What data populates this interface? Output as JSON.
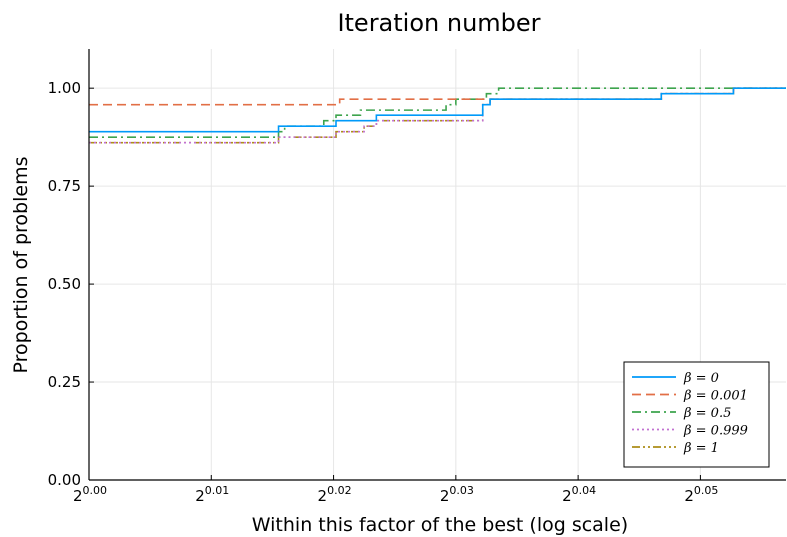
{
  "chart_data": {
    "type": "line",
    "title": "Iteration number",
    "xlabel": "Within this factor of the best (log scale)",
    "ylabel": "Proportion of problems",
    "xscale": "log2",
    "xlim": [
      0,
      0.057
    ],
    "ylim": [
      0,
      1.1
    ],
    "xticks": [
      {
        "base": "2",
        "exp": "0.00",
        "value": 0.0
      },
      {
        "base": "2",
        "exp": "0.01",
        "value": 0.01
      },
      {
        "base": "2",
        "exp": "0.02",
        "value": 0.02
      },
      {
        "base": "2",
        "exp": "0.03",
        "value": 0.03
      },
      {
        "base": "2",
        "exp": "0.04",
        "value": 0.04
      },
      {
        "base": "2",
        "exp": "0.05",
        "value": 0.05
      }
    ],
    "yticks": [
      {
        "label": "0.00",
        "value": 0.0
      },
      {
        "label": "0.25",
        "value": 0.25
      },
      {
        "label": "0.50",
        "value": 0.5
      },
      {
        "label": "0.75",
        "value": 0.75
      },
      {
        "label": "1.00",
        "value": 1.0
      }
    ],
    "grid": true,
    "legend_position": "bottom-right",
    "series": [
      {
        "name": "β = 0",
        "color": "#009af9",
        "dash": "solid",
        "steps": [
          [
            0,
            0.889
          ],
          [
            0.0155,
            0.903
          ],
          [
            0.0202,
            0.917
          ],
          [
            0.0235,
            0.931
          ],
          [
            0.0322,
            0.958
          ],
          [
            0.0328,
            0.972
          ],
          [
            0.0468,
            0.986
          ],
          [
            0.0527,
            1.0
          ],
          [
            0.057,
            1.0
          ]
        ]
      },
      {
        "name": "β = 0.001",
        "color": "#e26f46",
        "dash": "dashed",
        "steps": [
          [
            0,
            0.958
          ],
          [
            0.0205,
            0.972
          ],
          [
            0.0468,
            0.986
          ],
          [
            0.0527,
            1.0
          ],
          [
            0.057,
            1.0
          ]
        ]
      },
      {
        "name": "β = 0.5",
        "color": "#3da44d",
        "dash": "dashdot",
        "steps": [
          [
            0,
            0.875
          ],
          [
            0.0155,
            0.889
          ],
          [
            0.016,
            0.903
          ],
          [
            0.0192,
            0.917
          ],
          [
            0.0202,
            0.931
          ],
          [
            0.0222,
            0.944
          ],
          [
            0.0292,
            0.958
          ],
          [
            0.03,
            0.972
          ],
          [
            0.0325,
            0.986
          ],
          [
            0.0335,
            1.0
          ],
          [
            0.057,
            1.0
          ]
        ]
      },
      {
        "name": "β = 0.999",
        "color": "#c271d2",
        "dash": "dotted",
        "steps": [
          [
            0,
            0.861
          ],
          [
            0.0155,
            0.875
          ],
          [
            0.0202,
            0.889
          ],
          [
            0.0225,
            0.903
          ],
          [
            0.0235,
            0.917
          ],
          [
            0.0322,
            0.958
          ],
          [
            0.0328,
            0.972
          ],
          [
            0.0468,
            0.986
          ],
          [
            0.0527,
            1.0
          ],
          [
            0.057,
            1.0
          ]
        ]
      },
      {
        "name": "β = 1",
        "color": "#ac8d18",
        "dash": "dashdotdot",
        "steps": [
          [
            0,
            0.861
          ],
          [
            0.0155,
            0.875
          ],
          [
            0.0202,
            0.889
          ],
          [
            0.0225,
            0.903
          ],
          [
            0.0235,
            0.917
          ],
          [
            0.0322,
            0.958
          ],
          [
            0.0328,
            0.972
          ],
          [
            0.0468,
            0.986
          ],
          [
            0.0527,
            1.0
          ],
          [
            0.057,
            1.0
          ]
        ]
      }
    ]
  }
}
